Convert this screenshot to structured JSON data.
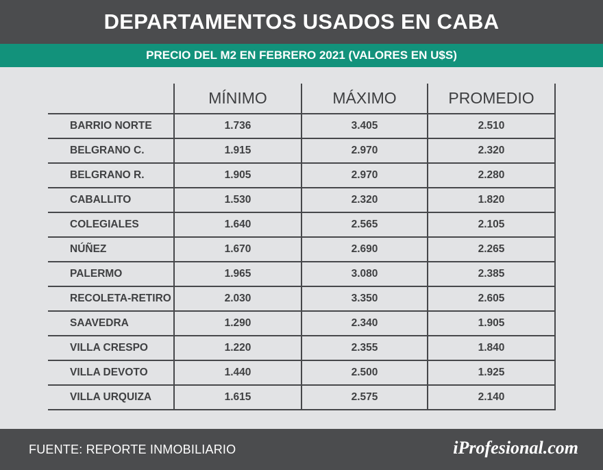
{
  "header": {
    "title": "DEPARTAMENTOS USADOS EN CABA",
    "subtitle": "PRECIO DEL M2 EN FEBRERO 2021 (VALORES EN U$S)"
  },
  "table": {
    "columns": [
      "MÍNIMO",
      "MÁXIMO",
      "PROMEDIO"
    ],
    "rows": [
      {
        "name": "BARRIO NORTE",
        "min": "1.736",
        "max": "3.405",
        "avg": "2.510"
      },
      {
        "name": "BELGRANO C.",
        "min": "1.915",
        "max": "2.970",
        "avg": "2.320"
      },
      {
        "name": "BELGRANO R.",
        "min": "1.905",
        "max": "2.970",
        "avg": "2.280"
      },
      {
        "name": "CABALLITO",
        "min": "1.530",
        "max": "2.320",
        "avg": "1.820"
      },
      {
        "name": "COLEGIALES",
        "min": "1.640",
        "max": "2.565",
        "avg": "2.105"
      },
      {
        "name": "NÚÑEZ",
        "min": "1.670",
        "max": "2.690",
        "avg": "2.265"
      },
      {
        "name": "PALERMO",
        "min": "1.965",
        "max": "3.080",
        "avg": "2.385"
      },
      {
        "name": "RECOLETA-RETIRO",
        "min": "2.030",
        "max": "3.350",
        "avg": "2.605"
      },
      {
        "name": "SAAVEDRA",
        "min": "1.290",
        "max": "2.340",
        "avg": "1.905"
      },
      {
        "name": "VILLA CRESPO",
        "min": "1.220",
        "max": "2.355",
        "avg": "1.840"
      },
      {
        "name": "VILLA DEVOTO",
        "min": "1.440",
        "max": "2.500",
        "avg": "1.925"
      },
      {
        "name": "VILLA URQUIZA",
        "min": "1.615",
        "max": "2.575",
        "avg": "2.140"
      }
    ]
  },
  "footer": {
    "source": "FUENTE: REPORTE INMOBILIARIO",
    "brand": "iProfesional.com"
  },
  "colors": {
    "title_bg": "#4b4c4e",
    "subtitle_bg": "#12927b",
    "background": "#e2e3e5",
    "text": "#3f4042"
  }
}
